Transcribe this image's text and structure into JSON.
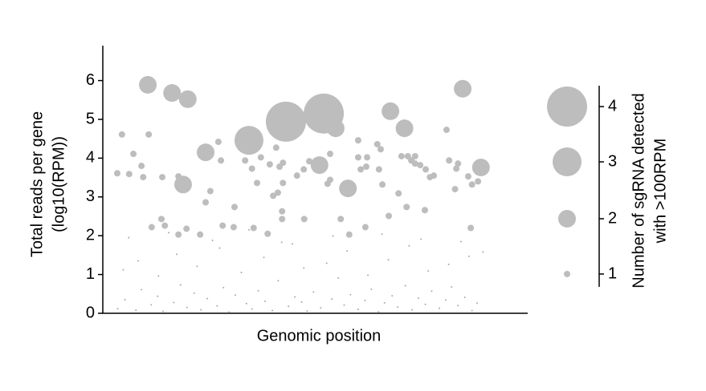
{
  "chart_data": {
    "type": "bubble",
    "x_label": "Genomic position",
    "y_label": [
      "Total reads per gene",
      "(log10(RPM))"
    ],
    "xlim": [
      0,
      100
    ],
    "ylim": [
      0,
      6.9
    ],
    "yticks": [
      0,
      1,
      2,
      3,
      4,
      5,
      6
    ],
    "color": "#bdbdbd",
    "background_color": "#a8a8a8",
    "points": {
      "x": [
        10.6,
        16.3,
        20.0,
        18.9,
        24.2,
        34.4,
        43.1,
        52.0,
        54.8,
        51.0,
        57.7,
        67.7,
        71.0,
        84.7,
        89.0,
        3.4,
        4.5,
        6.2,
        7.2,
        9.1,
        9.5,
        10.8,
        11.5,
        13.8,
        14.6,
        14.0,
        17.8,
        19.7,
        17.8,
        22.9,
        25.3,
        24.2,
        27.2,
        27.8,
        28.2,
        31.0,
        30.8,
        33.5,
        35.1,
        35.5,
        36.3,
        37.2,
        38.8,
        39.3,
        40.1,
        40.8,
        41.6,
        42.2,
        42.2,
        41.2,
        42.4,
        42.4,
        45.7,
        47.3,
        47.4,
        48.6,
        52.9,
        53.5,
        53.5,
        56.0,
        58.0,
        60.1,
        60.1,
        60.7,
        62.0,
        62.2,
        61.8,
        64.6,
        65.4,
        65.8,
        65.0,
        67.3,
        69.6,
        70.3,
        71.5,
        71.8,
        72.6,
        73.5,
        73.5,
        74.7,
        75.8,
        76.0,
        77.0,
        77.9,
        80.9,
        81.5,
        82.9,
        83.2,
        83.6,
        86.0,
        86.6,
        86.9,
        88.3
      ],
      "y": [
        5.89,
        5.68,
        5.52,
        3.32,
        4.15,
        4.46,
        4.94,
        5.15,
        4.77,
        3.82,
        3.22,
        5.21,
        4.77,
        5.79,
        3.76,
        3.61,
        4.61,
        3.59,
        4.11,
        3.8,
        3.51,
        4.61,
        2.22,
        2.43,
        2.26,
        3.51,
        2.03,
        2.18,
        3.53,
        2.03,
        3.15,
        2.86,
        4.42,
        3.94,
        2.26,
        2.74,
        2.22,
        3.94,
        3.73,
        2.2,
        3.36,
        4.02,
        2.05,
        3.84,
        3.03,
        4.27,
        3.78,
        2.43,
        2.63,
        3.11,
        3.36,
        3.88,
        3.55,
        3.71,
        2.43,
        3.92,
        3.34,
        4.11,
        3.44,
        2.43,
        2.03,
        4.46,
        4.02,
        3.71,
        3.78,
        4.02,
        2.22,
        4.36,
        4.23,
        3.32,
        3.71,
        2.51,
        3.09,
        4.05,
        2.74,
        4.05,
        3.94,
        4.05,
        3.86,
        3.82,
        2.66,
        3.71,
        3.51,
        3.55,
        4.73,
        3.94,
        3.2,
        3.73,
        3.86,
        3.53,
        2.2,
        3.32,
        3.4
      ],
      "size": [
        2,
        2,
        2,
        2,
        2,
        3,
        4,
        4,
        2,
        2,
        2,
        2,
        2,
        2,
        2,
        1,
        1,
        1,
        1,
        1,
        1,
        1,
        1,
        1,
        1,
        1,
        1,
        1,
        1,
        1,
        1,
        1,
        1,
        1,
        1,
        1,
        1,
        1,
        1,
        1,
        1,
        1,
        1,
        1,
        1,
        1,
        1,
        1,
        1,
        1,
        1,
        1,
        1,
        1,
        1,
        1,
        1,
        1,
        1,
        1,
        1,
        1,
        1,
        1,
        1,
        1,
        1,
        1,
        1,
        1,
        1,
        1,
        1,
        1,
        1,
        1,
        1,
        1,
        1,
        1,
        1,
        1,
        1,
        1,
        1,
        1,
        1,
        1,
        1,
        1,
        1,
        1,
        1
      ]
    },
    "background": {
      "x": [
        3.5,
        5.2,
        7.8,
        9.1,
        11.4,
        12.9,
        14.2,
        16.7,
        18.3,
        19.8,
        21.5,
        23.1,
        24.6,
        26.9,
        28.4,
        29.7,
        31.2,
        33.8,
        35.1,
        36.6,
        38.2,
        39.9,
        41.3,
        43.7,
        45.2,
        46.8,
        48.1,
        49.6,
        51.3,
        53.9,
        55.4,
        56.8,
        58.3,
        60.1,
        61.7,
        63.2,
        64.9,
        66.3,
        68.1,
        69.4,
        71.2,
        72.8,
        74.3,
        75.9,
        77.4,
        79.2,
        80.7,
        82.1,
        83.6,
        85.2,
        86.9,
        88.1,
        4.8,
        8.3,
        13.1,
        17.4,
        22.2,
        27.5,
        32.6,
        37.9,
        42.1,
        47.3,
        52.7,
        57.5,
        62.4,
        67.2,
        72.1,
        76.6,
        81.4,
        86.2,
        6.1,
        15.5,
        25.8,
        34.4,
        44.6,
        54.2,
        65.7,
        74.9,
        84.3,
        89.5
      ],
      "y": [
        0.12,
        0.35,
        0.08,
        0.61,
        0.22,
        0.44,
        0.05,
        0.28,
        0.73,
        0.15,
        0.52,
        0.09,
        0.38,
        0.19,
        0.66,
        0.03,
        0.47,
        0.25,
        0.11,
        0.58,
        0.31,
        0.07,
        0.84,
        0.18,
        0.42,
        0.29,
        0.06,
        0.55,
        0.14,
        0.37,
        0.91,
        0.21,
        0.48,
        0.1,
        0.33,
        0.62,
        0.04,
        0.27,
        0.45,
        0.16,
        0.71,
        0.09,
        0.39,
        0.23,
        0.57,
        0.13,
        0.34,
        0.68,
        0.2,
        0.41,
        0.07,
        0.26,
        1.12,
        1.35,
        0.96,
        1.52,
        1.21,
        1.68,
        1.05,
        1.44,
        1.83,
        1.17,
        1.29,
        1.61,
        0.98,
        1.38,
        1.74,
        1.09,
        1.26,
        1.47,
        1.95,
        2.08,
        1.88,
        2.15,
        1.79,
        1.99,
        2.04,
        1.91,
        1.85,
        1.58
      ]
    },
    "size_legend": {
      "sizes": [
        1,
        2,
        3,
        4
      ],
      "title": [
        "Number of sgRNA detected",
        "with >100RPM"
      ]
    }
  }
}
